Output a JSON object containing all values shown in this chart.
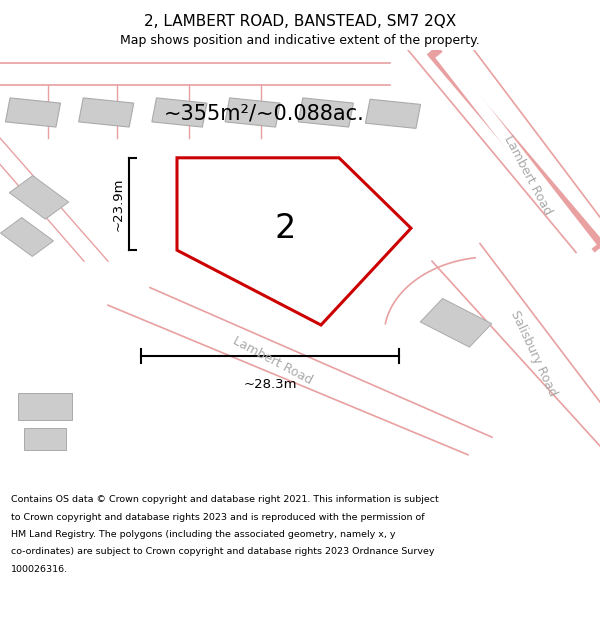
{
  "title": "2, LAMBERT ROAD, BANSTEAD, SM7 2QX",
  "subtitle": "Map shows position and indicative extent of the property.",
  "footer_line1": "Contains OS data © Crown copyright and database right 2021. This information is subject",
  "footer_line2": "to Crown copyright and database rights 2023 and is reproduced with the permission of",
  "footer_line3": "HM Land Registry. The polygons (including the associated geometry, namely x, y",
  "footer_line4": "co-ordinates) are subject to Crown copyright and database rights 2023 Ordnance Survey",
  "footer_line5": "100026316.",
  "map_bg": "#eeeeee",
  "road_color": "#e8a0a0",
  "building_color": "#cccccc",
  "building_edge": "#aaaaaa",
  "plot_color": "#cc0000",
  "plot_fill": "#ffffff",
  "plot_label": "2",
  "area_label": "~355m²/~0.088ac.",
  "dim_h_label": "~23.9m",
  "dim_w_label": "~28.3m",
  "lambert_road_label": "Lambert Road",
  "salisbury_road_label": "Salisbury Road",
  "lambert_road2_label": "Lambert Road",
  "label_color": "#aaaaaa",
  "title_fontsize": 11,
  "subtitle_fontsize": 9,
  "footer_fontsize": 6.8,
  "area_fontsize": 15,
  "plot_num_fontsize": 24,
  "dim_fontsize": 9.5,
  "road_label_fontsize": 9
}
